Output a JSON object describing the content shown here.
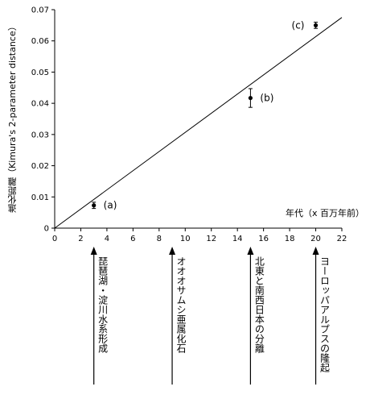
{
  "chart_data": {
    "type": "scatter",
    "title": "",
    "ylabel": "進化距離（Kimura's 2-parameter distance）",
    "xlabel": "年代（x 百万年前）",
    "xlim": [
      0,
      22
    ],
    "ylim": [
      0,
      0.07
    ],
    "xticks": [
      0,
      2,
      4,
      6,
      8,
      10,
      12,
      14,
      16,
      18,
      20,
      22
    ],
    "yticks": [
      0,
      0.01,
      0.02,
      0.03,
      0.04,
      0.05,
      0.06,
      0.07
    ],
    "ytick_labels": [
      "0",
      "0.01",
      "0.02",
      "0.03",
      "0.04",
      "0.05",
      "0.06",
      "0.07"
    ],
    "points": [
      {
        "label": "(a)",
        "x": 3,
        "y": 0.0073,
        "err": 0.001
      },
      {
        "label": "(b)",
        "x": 15,
        "y": 0.0417,
        "err": 0.003
      },
      {
        "label": "(c)",
        "x": 20,
        "y": 0.065,
        "err": 0.001
      }
    ],
    "regression_line": {
      "x": [
        0,
        22
      ],
      "y": [
        0,
        0.0675
      ]
    },
    "events": [
      {
        "x": 3,
        "label": "琵琶湖・淀川水系形成"
      },
      {
        "x": 9,
        "label": "オオオサムシ亜属化石"
      },
      {
        "x": 15,
        "label": "北東と南西日本の分離"
      },
      {
        "x": 20,
        "label": "ヨーロッパアルプスの隆起"
      }
    ]
  }
}
